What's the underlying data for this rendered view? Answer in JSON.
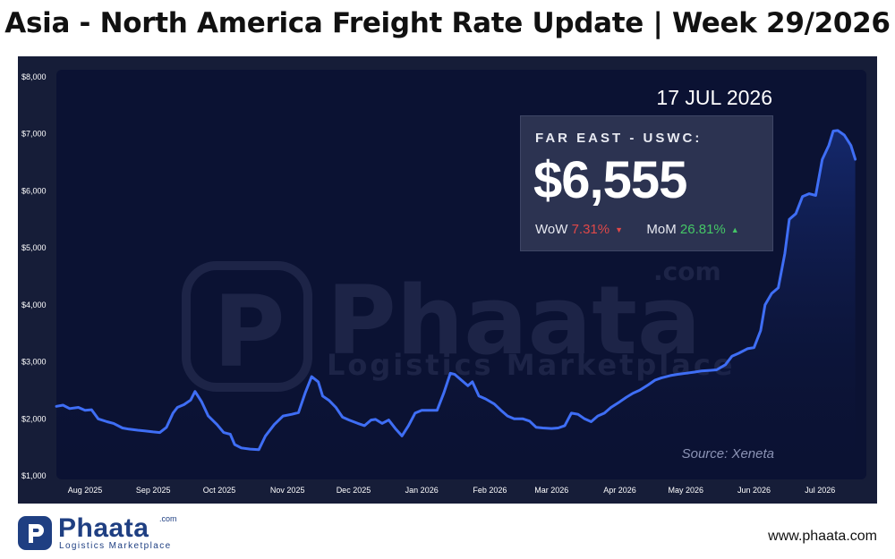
{
  "title": "Asia - North America Freight Rate Update | Week 29/2026",
  "date_label": "17 JUL 2026",
  "info_box": {
    "route": "FAR EAST - USWC:",
    "value": "$6,555",
    "wow_label": "WoW",
    "wow_value": "7.31%",
    "wow_direction": "down",
    "mom_label": "MoM",
    "mom_value": "26.81%",
    "mom_direction": "up"
  },
  "source": "Source: Xeneta",
  "watermark": {
    "name": "Phaata",
    "com": ".com",
    "tagline": "Logistics Marketplace"
  },
  "footer": {
    "logo_name": "Phaata",
    "logo_com": ".com",
    "logo_tagline": "Logistics Marketplace",
    "website": "www.phaata.com"
  },
  "colors": {
    "panel_bg": "#161d38",
    "plot_bg": "#0b1233",
    "line": "#3f6ef5",
    "wow_color": "#e04848",
    "mom_color": "#45c766",
    "brand": "#1f3f82"
  },
  "chart_data": {
    "type": "area",
    "title": "",
    "xlabel": "",
    "ylabel": "",
    "ylim": [
      1000,
      8000
    ],
    "y_ticks": [
      "$1,000",
      "$2,000",
      "$3,000",
      "$4,000",
      "$5,000",
      "$6,000",
      "$7,000",
      "$8,000"
    ],
    "x_range": [
      "2025-07-19",
      "2026-07-20"
    ],
    "x_ticks": [
      {
        "date": "2025-08-01",
        "label": "Aug 2025"
      },
      {
        "date": "2025-09-01",
        "label": "Sep 2025"
      },
      {
        "date": "2025-10-01",
        "label": "Oct 2025"
      },
      {
        "date": "2025-11-01",
        "label": "Nov 2025"
      },
      {
        "date": "2025-12-01",
        "label": "Dec 2025"
      },
      {
        "date": "2026-01-01",
        "label": "Jan 2026"
      },
      {
        "date": "2026-02-01",
        "label": "Feb 2026"
      },
      {
        "date": "2026-03-01",
        "label": "Mar 2026"
      },
      {
        "date": "2026-04-01",
        "label": "Apr 2026"
      },
      {
        "date": "2026-05-01",
        "label": "May 2026"
      },
      {
        "date": "2026-06-01",
        "label": "Jun 2026"
      },
      {
        "date": "2026-07-01",
        "label": "Jul 2026"
      }
    ],
    "series": [
      {
        "name": "FAR EAST - USWC",
        "points": [
          [
            "2025-07-19",
            2220
          ],
          [
            "2025-07-22",
            2240
          ],
          [
            "2025-07-25",
            2180
          ],
          [
            "2025-07-29",
            2200
          ],
          [
            "2025-08-01",
            2150
          ],
          [
            "2025-08-04",
            2160
          ],
          [
            "2025-08-07",
            2000
          ],
          [
            "2025-08-11",
            1950
          ],
          [
            "2025-08-14",
            1920
          ],
          [
            "2025-08-18",
            1840
          ],
          [
            "2025-08-21",
            1820
          ],
          [
            "2025-08-25",
            1800
          ],
          [
            "2025-08-28",
            1790
          ],
          [
            "2025-09-01",
            1770
          ],
          [
            "2025-09-04",
            1760
          ],
          [
            "2025-09-07",
            1850
          ],
          [
            "2025-09-10",
            2100
          ],
          [
            "2025-09-12",
            2200
          ],
          [
            "2025-09-15",
            2250
          ],
          [
            "2025-09-18",
            2330
          ],
          [
            "2025-09-20",
            2480
          ],
          [
            "2025-09-23",
            2300
          ],
          [
            "2025-09-26",
            2050
          ],
          [
            "2025-09-30",
            1900
          ],
          [
            "2025-10-03",
            1760
          ],
          [
            "2025-10-06",
            1730
          ],
          [
            "2025-10-08",
            1550
          ],
          [
            "2025-10-11",
            1490
          ],
          [
            "2025-10-15",
            1470
          ],
          [
            "2025-10-19",
            1460
          ],
          [
            "2025-10-22",
            1700
          ],
          [
            "2025-10-26",
            1900
          ],
          [
            "2025-10-30",
            2050
          ],
          [
            "2025-11-03",
            2080
          ],
          [
            "2025-11-06",
            2110
          ],
          [
            "2025-11-09",
            2450
          ],
          [
            "2025-11-12",
            2740
          ],
          [
            "2025-11-15",
            2650
          ],
          [
            "2025-11-17",
            2400
          ],
          [
            "2025-11-20",
            2320
          ],
          [
            "2025-11-23",
            2200
          ],
          [
            "2025-11-26",
            2030
          ],
          [
            "2025-11-29",
            1980
          ],
          [
            "2025-12-03",
            1920
          ],
          [
            "2025-12-06",
            1880
          ],
          [
            "2025-12-09",
            1980
          ],
          [
            "2025-12-11",
            1990
          ],
          [
            "2025-12-14",
            1920
          ],
          [
            "2025-12-17",
            1980
          ],
          [
            "2025-12-20",
            1830
          ],
          [
            "2025-12-23",
            1700
          ],
          [
            "2025-12-26",
            1880
          ],
          [
            "2025-12-29",
            2100
          ],
          [
            "2026-01-01",
            2150
          ],
          [
            "2026-01-05",
            2150
          ],
          [
            "2026-01-08",
            2150
          ],
          [
            "2026-01-11",
            2450
          ],
          [
            "2026-01-14",
            2800
          ],
          [
            "2026-01-16",
            2780
          ],
          [
            "2026-01-19",
            2680
          ],
          [
            "2026-01-22",
            2580
          ],
          [
            "2026-01-24",
            2650
          ],
          [
            "2026-01-27",
            2400
          ],
          [
            "2026-01-30",
            2350
          ],
          [
            "2026-02-03",
            2260
          ],
          [
            "2026-02-06",
            2150
          ],
          [
            "2026-02-09",
            2050
          ],
          [
            "2026-02-12",
            2000
          ],
          [
            "2026-02-16",
            2000
          ],
          [
            "2026-02-19",
            1960
          ],
          [
            "2026-02-22",
            1850
          ],
          [
            "2026-02-25",
            1840
          ],
          [
            "2026-03-01",
            1830
          ],
          [
            "2026-03-04",
            1840
          ],
          [
            "2026-03-07",
            1880
          ],
          [
            "2026-03-10",
            2100
          ],
          [
            "2026-03-13",
            2080
          ],
          [
            "2026-03-16",
            2000
          ],
          [
            "2026-03-19",
            1950
          ],
          [
            "2026-03-22",
            2050
          ],
          [
            "2026-03-25",
            2100
          ],
          [
            "2026-03-28",
            2200
          ],
          [
            "2026-04-01",
            2300
          ],
          [
            "2026-04-04",
            2380
          ],
          [
            "2026-04-07",
            2450
          ],
          [
            "2026-04-10",
            2500
          ],
          [
            "2026-04-14",
            2600
          ],
          [
            "2026-04-17",
            2680
          ],
          [
            "2026-04-20",
            2720
          ],
          [
            "2026-04-24",
            2760
          ],
          [
            "2026-04-27",
            2780
          ],
          [
            "2026-05-01",
            2800
          ],
          [
            "2026-05-05",
            2820
          ],
          [
            "2026-05-08",
            2840
          ],
          [
            "2026-05-12",
            2850
          ],
          [
            "2026-05-15",
            2860
          ],
          [
            "2026-05-19",
            2950
          ],
          [
            "2026-05-22",
            3100
          ],
          [
            "2026-05-25",
            3150
          ],
          [
            "2026-05-29",
            3230
          ],
          [
            "2026-06-01",
            3250
          ],
          [
            "2026-06-04",
            3550
          ],
          [
            "2026-06-06",
            4000
          ],
          [
            "2026-06-09",
            4200
          ],
          [
            "2026-06-12",
            4300
          ],
          [
            "2026-06-15",
            4900
          ],
          [
            "2026-06-17",
            5500
          ],
          [
            "2026-06-20",
            5600
          ],
          [
            "2026-06-23",
            5900
          ],
          [
            "2026-06-26",
            5950
          ],
          [
            "2026-06-29",
            5920
          ],
          [
            "2026-07-02",
            6550
          ],
          [
            "2026-07-05",
            6800
          ],
          [
            "2026-07-07",
            7050
          ],
          [
            "2026-07-09",
            7060
          ],
          [
            "2026-07-12",
            6980
          ],
          [
            "2026-07-15",
            6800
          ],
          [
            "2026-07-17",
            6555
          ]
        ]
      }
    ]
  }
}
